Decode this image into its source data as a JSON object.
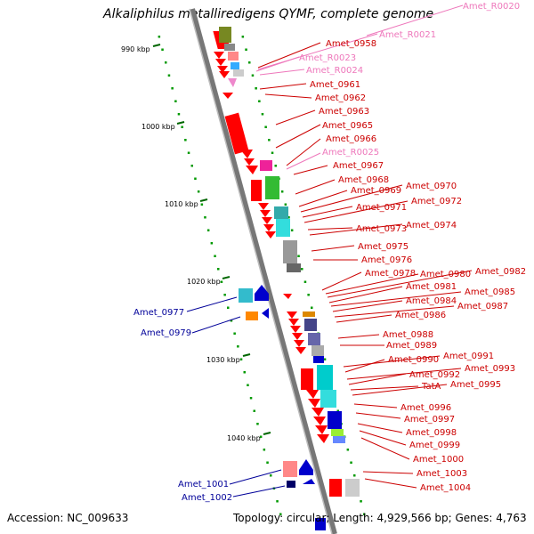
{
  "title": "Alkaliphilus metalliredigens QYMF, complete genome",
  "footer": {
    "accession": "Accession: NC_009633",
    "summary": "Topology: circular; Length: 4,929,566 bp; Genes: 4,763"
  },
  "colors": {
    "forward_label": "#cc0000",
    "reverse_label": "#000099",
    "rna_label": "#ee77bb",
    "axis": "#999999",
    "tick": "#006600"
  },
  "scale_ticks": [
    "990 kbp",
    "1000 kbp",
    "1010 kbp",
    "1020 kbp",
    "1030 kbp",
    "1040 kbp"
  ],
  "forward_genes": [
    "Amet_0958",
    "Amet_0961",
    "Amet_0962",
    "Amet_0963",
    "Amet_0965",
    "Amet_0966",
    "Amet_0967",
    "Amet_0968",
    "Amet_0969",
    "Amet_0970",
    "Amet_0971",
    "Amet_0972",
    "Amet_0973",
    "Amet_0974",
    "Amet_0975",
    "Amet_0976",
    "Amet_0978",
    "Amet_0980",
    "Amet_0982",
    "Amet_0981",
    "Amet_0985",
    "Amet_0984",
    "Amet_0987",
    "Amet_0986",
    "Amet_0988",
    "Amet_0989",
    "Amet_0991",
    "Amet_0990",
    "Amet_0993",
    "Amet_0992",
    "TatA",
    "Amet_0995",
    "Amet_0996",
    "Amet_0997",
    "Amet_0998",
    "Amet_0999",
    "Amet_1000",
    "Amet_1003",
    "Amet_1004"
  ],
  "rna_genes": [
    "Amet_R0020",
    "Amet_R0021",
    "Amet_R0023",
    "Amet_R0024",
    "Amet_R0025"
  ],
  "reverse_genes": [
    "Amet_0977",
    "Amet_0979",
    "Amet_1001",
    "Amet_1002"
  ]
}
